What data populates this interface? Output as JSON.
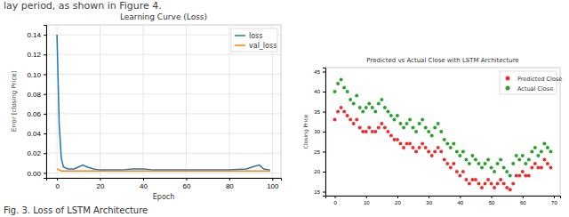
{
  "page": {
    "header_text": "lay period, as shown in Figure 4.",
    "caption": "Fig. 3. Loss of LSTM Architecture"
  },
  "chart_data": [
    {
      "type": "line",
      "title": "Learning Curve (Loss)",
      "x_label": "Epoch",
      "y_label": "Error [closing Price]",
      "x": [
        0,
        1,
        2,
        3,
        5,
        8,
        10,
        12,
        14,
        17,
        20,
        30,
        35,
        40,
        45,
        50,
        60,
        70,
        80,
        88,
        92,
        94,
        96,
        99
      ],
      "series": [
        {
          "name": "loss",
          "color": "#1f77b4",
          "line_style": "solid",
          "values": [
            0.14,
            0.05,
            0.015,
            0.006,
            0.004,
            0.004,
            0.006,
            0.008,
            0.006,
            0.004,
            0.003,
            0.003,
            0.004,
            0.004,
            0.003,
            0.003,
            0.003,
            0.003,
            0.003,
            0.004,
            0.007,
            0.008,
            0.004,
            0.003
          ]
        },
        {
          "name": "val_loss",
          "color": "#ff7f0e",
          "line_style": "solid",
          "values": [
            0.004,
            0.003,
            0.002,
            0.002,
            0.002,
            0.002,
            0.002,
            0.002,
            0.002,
            0.002,
            0.002,
            0.002,
            0.002,
            0.002,
            0.002,
            0.002,
            0.002,
            0.002,
            0.002,
            0.002,
            0.002,
            0.002,
            0.002,
            0.002
          ]
        }
      ],
      "xlim": [
        -5,
        104
      ],
      "ylim": [
        -0.005,
        0.15
      ],
      "xticks": [
        0,
        20,
        40,
        60,
        80,
        100
      ],
      "yticks": [
        {
          "value": 0,
          "label": "0.00"
        },
        {
          "value": 0.02,
          "label": "0.02"
        },
        {
          "value": 0.04,
          "label": "0.04"
        },
        {
          "value": 0.06,
          "label": "0.06"
        },
        {
          "value": 0.08,
          "label": "0.08"
        },
        {
          "value": 0.1,
          "label": "0.10"
        },
        {
          "value": 0.12,
          "label": "0.12"
        },
        {
          "value": 0.14,
          "label": "0.14"
        }
      ],
      "grid": true,
      "legend": "upper right"
    },
    {
      "type": "scatter",
      "title": "Predicted vs Actual Close with LSTM Architecture",
      "y_label": "Closing Price",
      "x": [
        0,
        1,
        2,
        3,
        4,
        5,
        6,
        7,
        8,
        9,
        10,
        11,
        12,
        13,
        14,
        15,
        16,
        17,
        18,
        19,
        20,
        21,
        22,
        23,
        24,
        25,
        26,
        27,
        28,
        29,
        30,
        31,
        32,
        33,
        34,
        35,
        36,
        37,
        38,
        39,
        40,
        41,
        42,
        43,
        44,
        45,
        46,
        47,
        48,
        49,
        50,
        51,
        52,
        53,
        54,
        55,
        56,
        57,
        58,
        59,
        60,
        61,
        62,
        63,
        64,
        65,
        66,
        67,
        68,
        69
      ],
      "series": [
        {
          "name": "Predicted Close",
          "color": "#e8312f",
          "marker": "circle",
          "values": [
            33,
            35,
            36,
            35,
            34,
            33,
            32,
            33,
            31,
            30,
            30,
            31,
            30,
            30,
            31,
            32,
            31,
            30,
            29,
            28,
            28,
            27,
            26,
            27,
            27,
            26,
            25,
            26,
            27,
            26,
            25,
            24,
            25,
            26,
            25,
            23,
            22,
            21,
            22,
            20,
            19,
            20,
            18,
            17,
            18,
            18,
            17,
            16,
            17,
            18,
            17,
            16,
            17,
            18,
            17,
            16,
            15.5,
            17,
            19,
            19,
            20,
            19,
            19,
            21,
            22,
            21,
            21,
            23,
            22,
            21
          ]
        },
        {
          "name": "Actual Close",
          "color": "#2ca02c",
          "marker": "circle",
          "values": [
            40,
            42,
            43,
            41,
            40,
            38,
            37,
            39,
            36,
            35,
            36,
            37,
            36,
            35,
            37,
            38,
            36,
            35,
            34,
            33,
            34,
            32,
            31,
            32,
            33,
            31,
            30,
            32,
            33,
            31,
            30,
            29,
            31,
            32,
            30,
            28,
            27,
            26,
            27,
            25,
            24,
            25,
            23,
            22,
            24,
            23,
            22,
            21,
            22,
            23,
            21,
            20,
            22,
            23,
            21,
            20,
            19,
            22,
            24,
            23,
            24,
            22,
            23,
            25,
            26,
            24,
            25,
            27,
            26,
            25
          ]
        }
      ],
      "xlim": [
        -3,
        72
      ],
      "ylim": [
        14,
        46
      ],
      "xticks": [
        0,
        10,
        20,
        30,
        40,
        50,
        60,
        70
      ],
      "yticks": [
        15,
        20,
        25,
        30,
        35,
        40,
        45
      ],
      "grid": false,
      "legend": "upper right"
    }
  ]
}
